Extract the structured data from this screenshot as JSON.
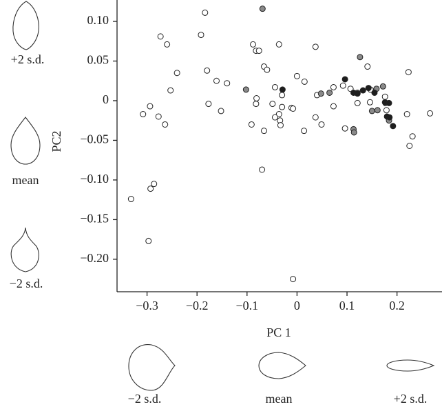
{
  "chart_data": {
    "type": "scatter",
    "xlabel": "PC 1",
    "ylabel": "PC2",
    "xlim": [
      -0.36,
      0.29
    ],
    "ylim": [
      -0.241,
      0.127
    ],
    "xticks": [
      {
        "value": -0.3,
        "label": "−0.3"
      },
      {
        "value": -0.2,
        "label": "−0.2"
      },
      {
        "value": -0.1,
        "label": "−0.1"
      },
      0,
      0.1,
      0.2
    ],
    "yticks": [
      {
        "value": 0.1,
        "label": "0.10"
      },
      0.05,
      0,
      {
        "value": -0.05,
        "label": "−0.05"
      },
      {
        "value": -0.1,
        "label": "−0.10"
      },
      {
        "value": -0.15,
        "label": "−0.15"
      },
      {
        "value": -0.2,
        "label": "−0.20"
      }
    ],
    "series": [
      {
        "color": "#ffffff",
        "x": [
          -0.332,
          -0.297,
          -0.293,
          -0.286,
          -0.308,
          -0.294,
          -0.277,
          -0.264,
          -0.273,
          -0.26,
          -0.253,
          -0.24,
          -0.192,
          -0.184,
          -0.18,
          -0.177,
          -0.161,
          -0.152,
          -0.14,
          -0.088,
          -0.082,
          -0.076,
          -0.081,
          -0.082,
          -0.091,
          -0.066,
          -0.06,
          -0.066,
          -0.07,
          -0.036,
          -0.044,
          -0.049,
          -0.036,
          -0.034,
          -0.03,
          -0.03,
          -0.044,
          -0.033,
          -0.011,
          -0.008,
          0,
          0.015,
          0.014,
          0.037,
          0.04,
          0.037,
          0.049,
          0.073,
          0.073,
          0.092,
          0.096,
          0.107,
          0.121,
          0.121,
          0.141,
          0.146,
          0.147,
          0.176,
          0.177,
          0.179,
          0.22,
          0.223,
          0.225,
          0.231,
          0.266,
          -0.008
        ],
        "values": [
          -0.124,
          -0.177,
          -0.111,
          -0.105,
          -0.017,
          -0.007,
          -0.02,
          -0.03,
          0.081,
          0.071,
          0.013,
          0.035,
          0.083,
          0.111,
          0.038,
          -0.004,
          0.025,
          -0.013,
          0.022,
          0.071,
          0.063,
          0.063,
          0.003,
          -0.004,
          -0.03,
          0.043,
          0.039,
          -0.038,
          -0.087,
          0.071,
          0.017,
          -0.004,
          -0.017,
          -0.025,
          0.007,
          -0.008,
          -0.021,
          -0.031,
          -0.009,
          -0.01,
          0.031,
          0.024,
          -0.038,
          0.068,
          0.007,
          -0.021,
          -0.03,
          -0.007,
          0.017,
          0.019,
          -0.035,
          0.015,
          -0.003,
          0.01,
          0.043,
          -0.002,
          0.014,
          0.005,
          -0.003,
          -0.012,
          -0.017,
          0.036,
          -0.057,
          -0.045,
          -0.016,
          -0.225
        ]
      },
      {
        "color": "#8a8a8a",
        "x": [
          -0.069,
          -0.102,
          0.048,
          0.065,
          0.113,
          0.114,
          0.126,
          0.15,
          0.161,
          0.159,
          0.172,
          0.184
        ],
        "values": [
          0.116,
          0.014,
          0.009,
          0.01,
          -0.036,
          -0.04,
          0.055,
          -0.013,
          -0.012,
          0.015,
          0.018,
          -0.025
        ]
      },
      {
        "color": "#1e1e1e",
        "x": [
          -0.029,
          0.096,
          0.113,
          0.121,
          0.132,
          0.143,
          0.155,
          0.176,
          0.184,
          0.18,
          0.185,
          0.192
        ],
        "values": [
          0.014,
          0.027,
          0.01,
          0.009,
          0.013,
          0.016,
          0.01,
          -0.002,
          -0.003,
          -0.02,
          -0.021,
          -0.032
        ]
      }
    ],
    "shape_labels": {
      "pc2": [
        "+2 s.d.",
        "mean",
        "−2 s.d."
      ],
      "pc1": [
        "−2 s.d.",
        "mean",
        "+2 s.d."
      ]
    }
  }
}
